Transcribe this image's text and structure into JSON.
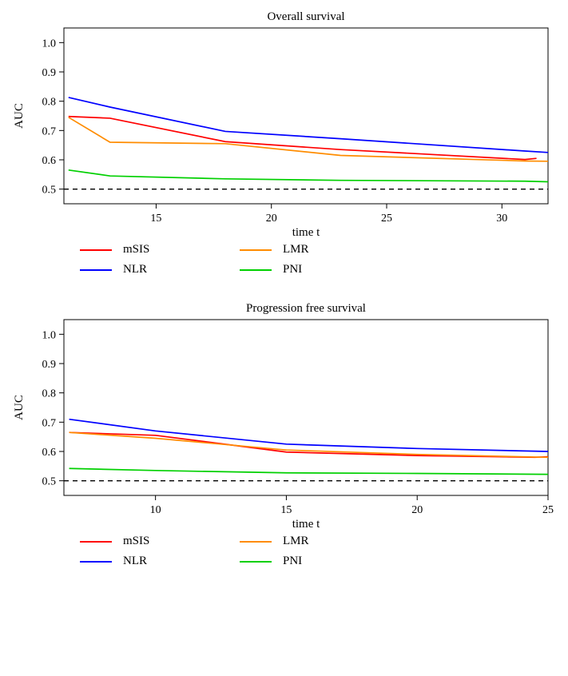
{
  "charts": [
    {
      "title": "Overall survival",
      "xlabel": "time t",
      "ylabel": "AUC",
      "xlim": [
        11,
        32
      ],
      "ylim": [
        0.45,
        1.05
      ],
      "xticks": [
        15,
        20,
        25,
        30
      ],
      "yticks": [
        0.5,
        0.6,
        0.7,
        0.8,
        0.9,
        1.0
      ],
      "refline": 0.5,
      "series": [
        {
          "name": "mSIS",
          "color": "#ff0000",
          "points": [
            [
              11.2,
              0.748
            ],
            [
              13,
              0.742
            ],
            [
              18,
              0.662
            ],
            [
              23,
              0.635
            ],
            [
              31,
              0.601
            ],
            [
              31.5,
              0.605
            ]
          ]
        },
        {
          "name": "NLR",
          "color": "#0000ff",
          "points": [
            [
              11.2,
              0.813
            ],
            [
              13,
              0.78
            ],
            [
              18,
              0.697
            ],
            [
              23,
              0.672
            ],
            [
              31,
              0.63
            ],
            [
              32,
              0.625
            ]
          ]
        },
        {
          "name": "LMR",
          "color": "#ff8c00",
          "points": [
            [
              11.2,
              0.745
            ],
            [
              13,
              0.66
            ],
            [
              18,
              0.655
            ],
            [
              23,
              0.615
            ],
            [
              31,
              0.596
            ],
            [
              32,
              0.595
            ]
          ]
        },
        {
          "name": "PNI",
          "color": "#00d000",
          "points": [
            [
              11.2,
              0.565
            ],
            [
              13,
              0.545
            ],
            [
              18,
              0.535
            ],
            [
              23,
              0.53
            ],
            [
              31,
              0.527
            ],
            [
              32,
              0.525
            ]
          ]
        }
      ]
    },
    {
      "title": "Progression free survival",
      "xlabel": "time t",
      "ylabel": "AUC",
      "xlim": [
        6.5,
        25
      ],
      "ylim": [
        0.45,
        1.05
      ],
      "xticks": [
        10,
        15,
        20,
        25
      ],
      "yticks": [
        0.5,
        0.6,
        0.7,
        0.8,
        0.9,
        1.0
      ],
      "refline": 0.5,
      "series": [
        {
          "name": "mSIS",
          "color": "#ff0000",
          "points": [
            [
              6.7,
              0.665
            ],
            [
              10,
              0.655
            ],
            [
              15,
              0.598
            ],
            [
              20,
              0.586
            ],
            [
              24.5,
              0.58
            ],
            [
              25,
              0.582
            ]
          ]
        },
        {
          "name": "NLR",
          "color": "#0000ff",
          "points": [
            [
              6.7,
              0.71
            ],
            [
              10,
              0.67
            ],
            [
              15,
              0.625
            ],
            [
              20,
              0.61
            ],
            [
              25,
              0.6
            ]
          ]
        },
        {
          "name": "LMR",
          "color": "#ff8c00",
          "points": [
            [
              6.7,
              0.665
            ],
            [
              10,
              0.645
            ],
            [
              15,
              0.605
            ],
            [
              20,
              0.59
            ],
            [
              25,
              0.58
            ]
          ]
        },
        {
          "name": "PNI",
          "color": "#00d000",
          "points": [
            [
              6.7,
              0.542
            ],
            [
              10,
              0.535
            ],
            [
              15,
              0.527
            ],
            [
              20,
              0.525
            ],
            [
              25,
              0.522
            ]
          ]
        }
      ]
    }
  ],
  "legend_items": [
    {
      "name": "mSIS",
      "color": "#ff0000"
    },
    {
      "name": "LMR",
      "color": "#ff8c00"
    },
    {
      "name": "NLR",
      "color": "#0000ff"
    },
    {
      "name": "PNI",
      "color": "#00d000"
    }
  ],
  "style": {
    "title_fontsize": 15,
    "label_fontsize": 15,
    "tick_fontsize": 14,
    "line_width": 1.7,
    "axis_color": "#000000",
    "background": "#ffffff",
    "dash_pattern": "6,5"
  }
}
